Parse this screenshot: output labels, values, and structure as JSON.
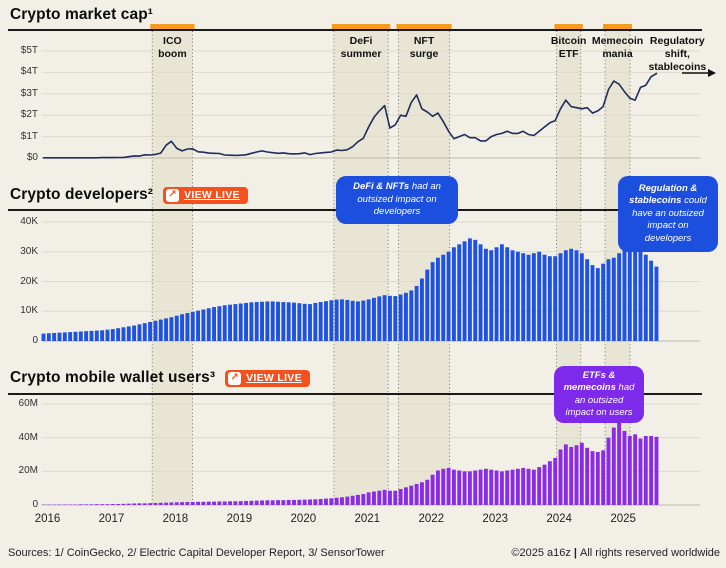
{
  "colors": {
    "background": "#F2EFE7",
    "band_fill": "#E9E5D5",
    "band_border": "#6B675C",
    "band_cap_orange": "#F59C20",
    "rule_black": "#1A1A1A",
    "line_navy": "#1F2C5C",
    "bar_blue": "#1D52E2",
    "bar_purple": "#8A2BE8",
    "callout_blue": "#1D4FDE",
    "callout_purple": "#7D2AEA",
    "button_orange": "#F4511E",
    "grid": "#DFDACA",
    "zero_line": "#BFBAAA",
    "arrow_black": "#111111"
  },
  "sections": [
    {
      "title": "Crypto market cap¹"
    },
    {
      "title": "Crypto developers²",
      "view_live_label": "VIEW LIVE",
      "view_live_icon": "↗"
    },
    {
      "title": "Crypto mobile wallet users³",
      "view_live_label": "VIEW LIVE",
      "view_live_icon": "↗"
    }
  ],
  "annotations": [
    {
      "lines": [
        "ICO",
        "boom"
      ],
      "band": [
        2017.7,
        2018.33
      ]
    },
    {
      "lines": [
        "DeFi",
        "summer"
      ],
      "band": [
        2020.54,
        2021.39
      ]
    },
    {
      "lines": [
        "NFT",
        "surge"
      ],
      "band": [
        2021.55,
        2022.35
      ]
    },
    {
      "lines": [
        "Bitcoin",
        "ETF"
      ],
      "band": [
        2024.02,
        2024.4
      ]
    },
    {
      "lines": [
        "Memecoin",
        "mania"
      ],
      "band": [
        2024.78,
        2025.17
      ]
    },
    {
      "lines": [
        "Regulatory",
        "shift,",
        "stablecoins"
      ],
      "band": null,
      "center_year": 2025.91,
      "arrow": true
    }
  ],
  "callouts": [
    {
      "bold": "DeFi & NFTs",
      "rest": " had an outsized impact on developers",
      "color_key": "callout_blue"
    },
    {
      "bold": "Regulation & stablecoins",
      "rest": " could have an outsized impact on developers",
      "color_key": "callout_blue"
    },
    {
      "bold": "ETFs & memecoins",
      "rest": " had an outsized impact on users",
      "color_key": "callout_purple"
    }
  ],
  "footer": {
    "sources": "Sources: 1/ CoinGecko, 2/ Electric Capital Developer Report, 3/ SensorTower",
    "copyright": "©2025 a16z",
    "divider": "|",
    "rights": "All rights reserved worldwide"
  },
  "chart_data": [
    {
      "type": "line",
      "title": "Crypto market cap",
      "x_start_year": 2016,
      "x_interval": "monthly",
      "ylim": [
        0,
        5.6
      ],
      "yticks": [
        {
          "v": 0,
          "label": "$0"
        },
        {
          "v": 1,
          "label": "$1T"
        },
        {
          "v": 2,
          "label": "$2T"
        },
        {
          "v": 3,
          "label": "$3T"
        },
        {
          "v": 4,
          "label": "$4T"
        },
        {
          "v": 5,
          "label": "$5T"
        }
      ],
      "values": [
        0.01,
        0.01,
        0.01,
        0.01,
        0.01,
        0.01,
        0.01,
        0.01,
        0.01,
        0.01,
        0.01,
        0.02,
        0.02,
        0.02,
        0.025,
        0.03,
        0.06,
        0.1,
        0.09,
        0.15,
        0.14,
        0.17,
        0.23,
        0.6,
        0.78,
        0.45,
        0.33,
        0.42,
        0.43,
        0.29,
        0.27,
        0.23,
        0.22,
        0.21,
        0.14,
        0.13,
        0.12,
        0.13,
        0.15,
        0.22,
        0.28,
        0.33,
        0.28,
        0.25,
        0.22,
        0.24,
        0.2,
        0.19,
        0.2,
        0.24,
        0.16,
        0.21,
        0.24,
        0.26,
        0.28,
        0.37,
        0.35,
        0.39,
        0.53,
        0.76,
        0.92,
        1.45,
        1.9,
        2.2,
        2.45,
        1.4,
        1.55,
        2.0,
        1.95,
        2.6,
        2.95,
        2.3,
        2.15,
        1.95,
        2.1,
        1.7,
        1.25,
        0.9,
        1.0,
        1.1,
        0.95,
        0.95,
        0.8,
        0.8,
        1.0,
        1.1,
        1.15,
        1.25,
        1.15,
        1.15,
        1.25,
        1.1,
        1.05,
        1.25,
        1.45,
        1.65,
        1.75,
        2.3,
        2.7,
        2.4,
        2.35,
        2.3,
        2.35,
        2.1,
        2.2,
        2.4,
        3.2,
        3.6,
        3.45,
        3.1,
        2.8,
        2.7,
        3.3,
        3.4,
        3.8,
        3.95
      ]
    },
    {
      "type": "bar",
      "title": "Crypto developers",
      "x_start_year": 2016,
      "x_interval": "monthly",
      "ylim": [
        0,
        44
      ],
      "yticks": [
        {
          "v": 0,
          "label": "0"
        },
        {
          "v": 10,
          "label": "10K"
        },
        {
          "v": 20,
          "label": "20K"
        },
        {
          "v": 30,
          "label": "30K"
        },
        {
          "v": 40,
          "label": "40K"
        }
      ],
      "values": [
        2.5,
        2.6,
        2.7,
        2.8,
        2.9,
        3.0,
        3.1,
        3.2,
        3.3,
        3.4,
        3.5,
        3.6,
        3.8,
        4.0,
        4.3,
        4.6,
        4.9,
        5.2,
        5.6,
        6.0,
        6.4,
        6.8,
        7.2,
        7.6,
        8.0,
        8.5,
        9.0,
        9.4,
        9.8,
        10.2,
        10.6,
        11.0,
        11.4,
        11.7,
        12.0,
        12.2,
        12.4,
        12.6,
        12.8,
        13.0,
        13.1,
        13.2,
        13.3,
        13.3,
        13.2,
        13.1,
        13.0,
        12.9,
        12.7,
        12.5,
        12.4,
        12.8,
        13.1,
        13.4,
        13.7,
        13.9,
        14.0,
        13.8,
        13.5,
        13.3,
        13.6,
        14.0,
        14.5,
        15.0,
        15.4,
        15.2,
        15.1,
        15.6,
        16.2,
        17.0,
        18.5,
        21.0,
        24.0,
        26.5,
        28.0,
        29.0,
        30.0,
        31.5,
        32.5,
        33.5,
        34.5,
        34.0,
        32.5,
        31.0,
        30.5,
        31.5,
        32.5,
        31.5,
        30.5,
        30.0,
        29.5,
        29.0,
        29.5,
        30.0,
        29.0,
        28.5,
        28.5,
        29.5,
        30.5,
        31.0,
        30.5,
        29.5,
        27.5,
        25.5,
        24.5,
        26.0,
        27.5,
        28.0,
        29.5,
        32.0,
        33.5,
        31.0,
        30.0,
        29.0,
        27.0,
        25.0
      ]
    },
    {
      "type": "bar",
      "title": "Crypto mobile wallet users",
      "x_start_year": 2016,
      "x_interval": "monthly",
      "ylim": [
        0,
        65
      ],
      "yticks": [
        {
          "v": 0,
          "label": "0"
        },
        {
          "v": 20,
          "label": "20M"
        },
        {
          "v": 40,
          "label": "40M"
        },
        {
          "v": 60,
          "label": "60M"
        }
      ],
      "x_axis_years": [
        "2016",
        "2017",
        "2018",
        "2019",
        "2020",
        "2021",
        "2022",
        "2023",
        "2024",
        "2025"
      ],
      "values": [
        0.2,
        0.2,
        0.2,
        0.3,
        0.3,
        0.3,
        0.3,
        0.4,
        0.4,
        0.4,
        0.5,
        0.5,
        0.5,
        0.6,
        0.6,
        0.7,
        0.8,
        0.9,
        1.0,
        1.0,
        1.1,
        1.2,
        1.3,
        1.4,
        1.5,
        1.6,
        1.7,
        1.8,
        1.8,
        1.9,
        1.9,
        2.0,
        2.0,
        2.1,
        2.1,
        2.2,
        2.2,
        2.3,
        2.4,
        2.5,
        2.6,
        2.7,
        2.8,
        2.8,
        2.9,
        2.9,
        3.0,
        3.0,
        3.1,
        3.2,
        3.3,
        3.4,
        3.6,
        3.8,
        4.0,
        4.3,
        4.6,
        5.0,
        5.5,
        6.0,
        6.5,
        7.5,
        8.0,
        8.5,
        9.0,
        8.5,
        8.5,
        9.5,
        10.5,
        11.5,
        12.5,
        13.5,
        15.0,
        18.0,
        20.5,
        21.5,
        22.0,
        21.0,
        20.5,
        20.0,
        20.0,
        20.5,
        21.0,
        21.5,
        21.0,
        20.5,
        20.0,
        20.5,
        21.0,
        21.5,
        22.0,
        21.5,
        21.0,
        22.5,
        24.0,
        26.0,
        28.0,
        33.0,
        36.0,
        34.5,
        35.5,
        37.0,
        34.0,
        32.0,
        31.5,
        32.5,
        40.0,
        46.0,
        50.0,
        44.0,
        41.0,
        42.0,
        39.5,
        41.0,
        41.0,
        40.5
      ]
    }
  ]
}
